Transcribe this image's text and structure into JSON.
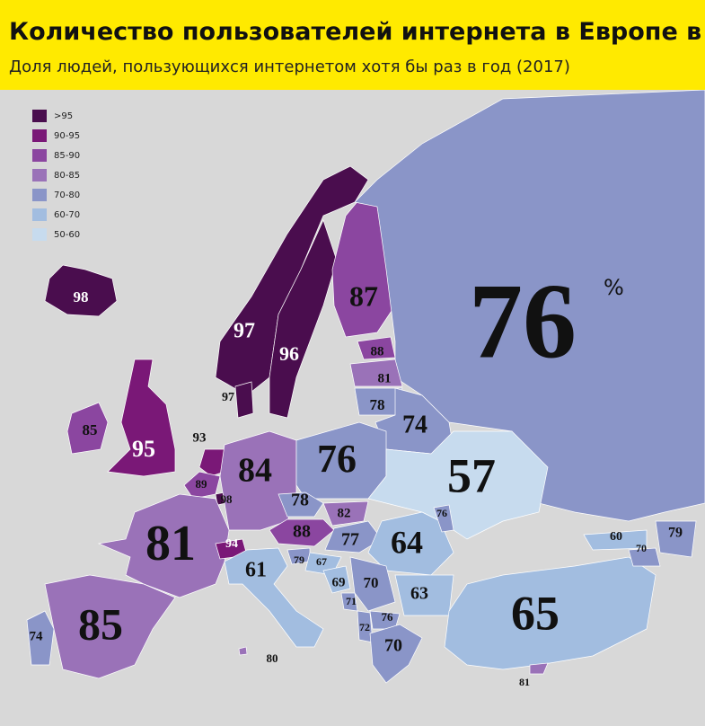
{
  "header": {
    "title": "Количество пользователей интернета в Европе в %",
    "subtitle": "Доля людей, пользующихся интернетом хотя бы раз в год (2017)"
  },
  "legend": [
    {
      "label": ">95",
      "color": "#4a0d4e"
    },
    {
      "label": "90-95",
      "color": "#7a1877"
    },
    {
      "label": "85-90",
      "color": "#8b46a0"
    },
    {
      "label": "80-85",
      "color": "#9a72b8"
    },
    {
      "label": "70-80",
      "color": "#8a95c8"
    },
    {
      "label": "60-70",
      "color": "#a2bde0"
    },
    {
      "label": "50-60",
      "color": "#c7dbee"
    }
  ],
  "unit": "%",
  "regions": [
    {
      "value": 98,
      "color": "#4a0d4e"
    },
    {
      "value": 97,
      "color": "#4a0d4e"
    },
    {
      "value": 96,
      "color": "#4a0d4e"
    },
    {
      "value": 87,
      "color": "#8b46a0"
    },
    {
      "value": 76,
      "color": "#8a95c8"
    },
    {
      "value": 88,
      "color": "#8b46a0"
    },
    {
      "value": 81,
      "color": "#9a72b8"
    },
    {
      "value": 78,
      "color": "#8a95c8"
    },
    {
      "value": 74,
      "color": "#8a95c8"
    },
    {
      "value": 97,
      "color": "#4a0d4e"
    },
    {
      "value": 95,
      "color": "#7a1877"
    },
    {
      "value": 85,
      "color": "#8b46a0"
    },
    {
      "value": 93,
      "color": "#7a1877"
    },
    {
      "value": 89,
      "color": "#8b46a0"
    },
    {
      "value": 98,
      "color": "#4a0d4e"
    },
    {
      "value": 84,
      "color": "#9a72b8"
    },
    {
      "value": 76,
      "color": "#8a95c8"
    },
    {
      "value": 57,
      "color": "#c7dbee"
    },
    {
      "value": 78,
      "color": "#8a95c8"
    },
    {
      "value": 82,
      "color": "#9a72b8"
    },
    {
      "value": 88,
      "color": "#8b46a0"
    },
    {
      "value": 77,
      "color": "#8a95c8"
    },
    {
      "value": 64,
      "color": "#a2bde0"
    },
    {
      "value": 76,
      "color": "#8a95c8"
    },
    {
      "value": 81,
      "color": "#9a72b8"
    },
    {
      "value": 94,
      "color": "#7a1877"
    },
    {
      "value": 61,
      "color": "#a2bde0"
    },
    {
      "value": 79,
      "color": "#8a95c8"
    },
    {
      "value": 67,
      "color": "#a2bde0"
    },
    {
      "value": 69,
      "color": "#a2bde0"
    },
    {
      "value": 70,
      "color": "#8a95c8"
    },
    {
      "value": 71,
      "color": "#8a95c8"
    },
    {
      "value": 63,
      "color": "#a2bde0"
    },
    {
      "value": 76,
      "color": "#8a95c8"
    },
    {
      "value": 72,
      "color": "#8a95c8"
    },
    {
      "value": 70,
      "color": "#8a95c8"
    },
    {
      "value": 65,
      "color": "#a2bde0"
    },
    {
      "value": 60,
      "color": "#a2bde0"
    },
    {
      "value": 70,
      "color": "#8a95c8"
    },
    {
      "value": 79,
      "color": "#8a95c8"
    },
    {
      "value": 85,
      "color": "#9a72b8"
    },
    {
      "value": 74,
      "color": "#8a95c8"
    },
    {
      "value": 80,
      "color": "#9a72b8"
    },
    {
      "value": 81,
      "color": "#9a72b8"
    }
  ]
}
